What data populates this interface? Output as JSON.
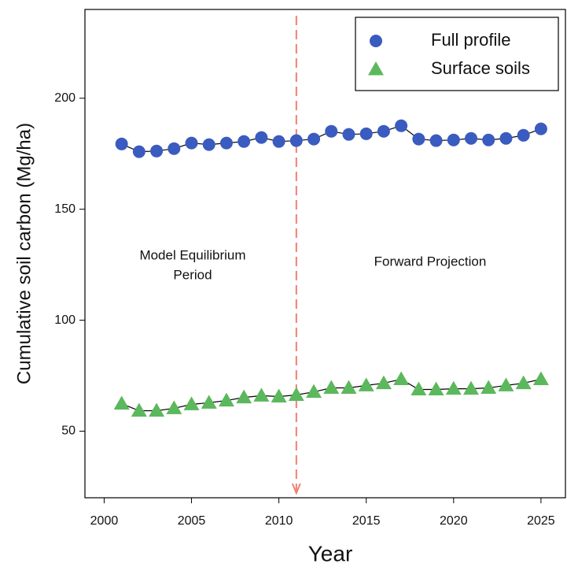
{
  "chart_data": {
    "type": "line",
    "x_label": "Year",
    "y_label": "Cumulative soil carbon (Mg/ha)",
    "x": [
      2001,
      2002,
      2003,
      2004,
      2005,
      2006,
      2007,
      2008,
      2009,
      2010,
      2011,
      2012,
      2013,
      2014,
      2015,
      2016,
      2017,
      2018,
      2019,
      2020,
      2021,
      2022,
      2023,
      2024,
      2025
    ],
    "series": [
      {
        "name": "Full profile",
        "color": "#3a5bbf",
        "marker": "circle",
        "values": [
          179.4,
          175.9,
          176.2,
          177.3,
          179.8,
          179.1,
          179.8,
          180.5,
          182.3,
          180.5,
          180.9,
          181.6,
          185.1,
          183.7,
          184.0,
          185.1,
          187.6,
          181.6,
          180.9,
          181.2,
          181.9,
          181.2,
          181.9,
          183.3,
          186.2
        ]
      },
      {
        "name": "Surface soils",
        "color": "#5cb85c",
        "marker": "triangle",
        "values": [
          62.4,
          59.2,
          59.2,
          60.3,
          62.1,
          62.8,
          63.8,
          65.2,
          66.0,
          65.6,
          66.3,
          67.7,
          69.5,
          69.5,
          70.6,
          71.6,
          73.4,
          68.8,
          68.8,
          69.1,
          69.1,
          69.5,
          70.6,
          71.6,
          73.4
        ]
      }
    ],
    "xlim": [
      1998.9,
      2026.4
    ],
    "xticks": [
      2000,
      2005,
      2010,
      2015,
      2020,
      2025
    ],
    "ylim": [
      20,
      240
    ],
    "yticks": [
      50,
      100,
      150,
      200
    ],
    "vline": 2011,
    "vline_color": "#f08070",
    "annotations": [
      "Model Equilibrium",
      "Period",
      "Forward Projection"
    ],
    "legend": "upper right"
  }
}
